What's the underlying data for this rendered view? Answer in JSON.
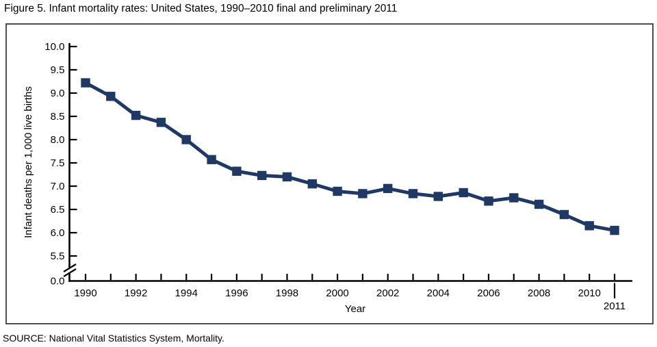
{
  "figure": {
    "title": "Figure 5. Infant mortality rates: United States, 1990–2010 final and preliminary 2011",
    "source": "SOURCE: National Vital Statistics System, Mortality."
  },
  "colors": {
    "series": "#1F3864",
    "axis": "#000000",
    "frame": "#4d4d4d",
    "background": "#ffffff",
    "text": "#000000"
  },
  "chart_data": {
    "type": "line",
    "title": "Figure 5. Infant mortality rates: United States, 1990–2010 final and preliminary 2011",
    "xlabel": "Year",
    "ylabel": "Infant deaths per 1,000 live births",
    "x": [
      1990,
      1991,
      1992,
      1993,
      1994,
      1995,
      1996,
      1997,
      1998,
      1999,
      2000,
      2001,
      2002,
      2003,
      2004,
      2005,
      2006,
      2007,
      2008,
      2009,
      2010,
      2011
    ],
    "series": [
      {
        "name": "Infant deaths per 1,000 live births",
        "marker": "square",
        "values": [
          9.22,
          8.93,
          8.52,
          8.37,
          8.0,
          7.57,
          7.32,
          7.23,
          7.2,
          7.05,
          6.89,
          6.84,
          6.95,
          6.84,
          6.78,
          6.86,
          6.68,
          6.75,
          6.61,
          6.39,
          6.15,
          6.05
        ]
      }
    ],
    "x_tick_years": [
      1990,
      1991,
      1992,
      1993,
      1994,
      1995,
      1996,
      1997,
      1998,
      1999,
      2000,
      2001,
      2002,
      2003,
      2004,
      2005,
      2006,
      2007,
      2008,
      2009,
      2010,
      2011
    ],
    "x_labeled_years": [
      1990,
      1992,
      1994,
      1996,
      1998,
      2000,
      2002,
      2004,
      2006,
      2008,
      2010
    ],
    "x_callout": {
      "year": 2011,
      "label": "2011"
    },
    "y_ticks": [
      5.5,
      6.0,
      6.5,
      7.0,
      7.5,
      8.0,
      8.5,
      9.0,
      9.5,
      10.0
    ],
    "y_origin_label": "0.0",
    "ylim": [
      0,
      10
    ],
    "y_display_range": [
      5.5,
      10.0
    ],
    "y_axis_break": {
      "between": [
        0.0,
        5.5
      ]
    },
    "grid": false,
    "legend": "none"
  }
}
